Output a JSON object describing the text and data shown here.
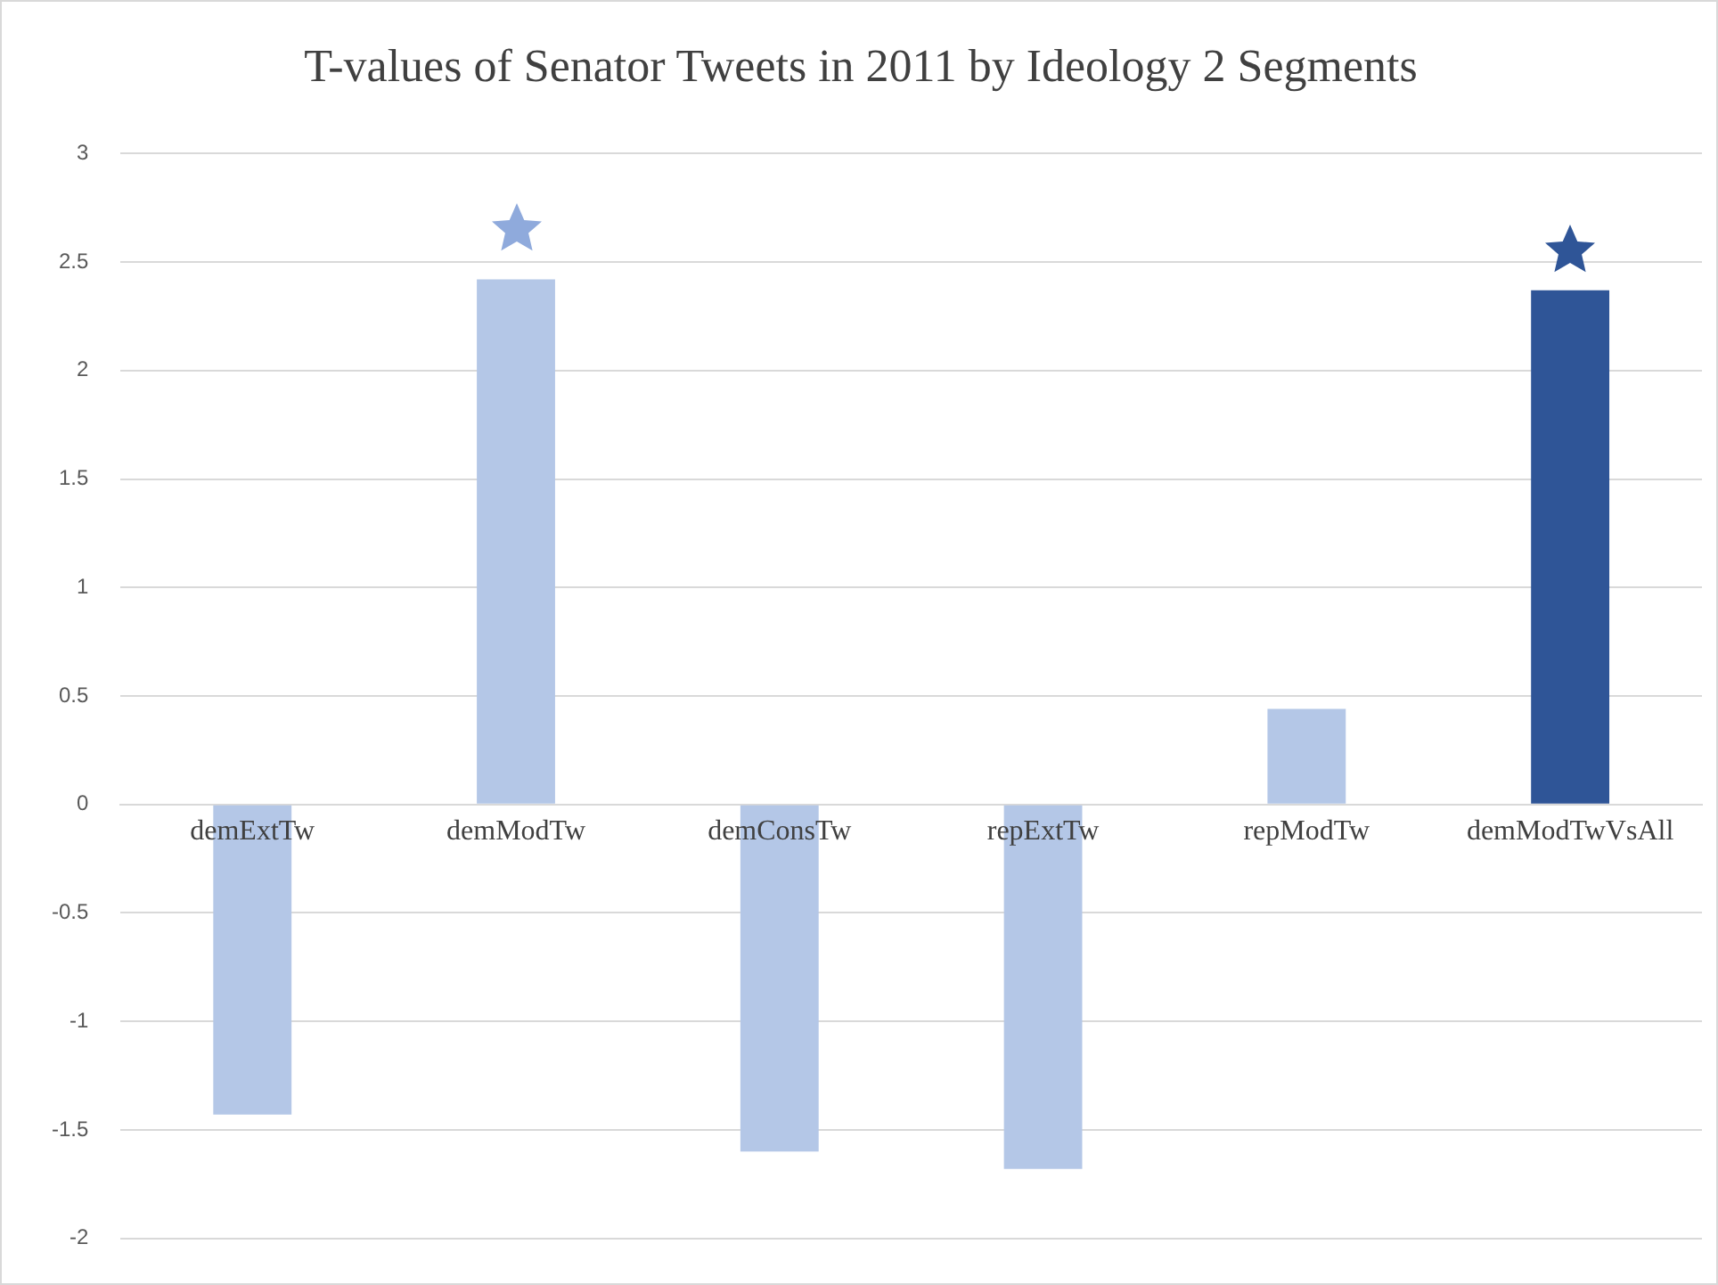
{
  "chart_data": {
    "type": "bar",
    "title": "T-values of Senator Tweets in 2011 by Ideology 2 Segments",
    "categories": [
      "demExtTw",
      "demModTw",
      "demConsTw",
      "repExtTw",
      "repModTw",
      "demModTwVsAll"
    ],
    "values": [
      -1.43,
      2.42,
      -1.6,
      -1.68,
      0.44,
      2.37
    ],
    "colors": [
      "#b4c7e7",
      "#b4c7e7",
      "#b4c7e7",
      "#b4c7e7",
      "#b4c7e7",
      "#2f5597"
    ],
    "ylim": [
      -2,
      3
    ],
    "yticks": [
      -2,
      -1.5,
      -1,
      -0.5,
      0,
      0.5,
      1,
      1.5,
      2,
      2.5,
      3
    ],
    "grid": "y",
    "legend": false
  }
}
